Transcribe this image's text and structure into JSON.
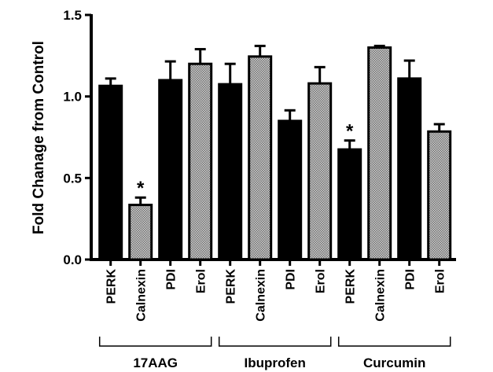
{
  "chart_data": {
    "type": "bar",
    "title": "",
    "xlabel": "",
    "ylabel": "Fold Chanage from Control",
    "ylim": [
      0,
      1.5
    ],
    "yticks": [
      "0.0",
      "0.5",
      "1.0",
      "1.5"
    ],
    "ytick_values": [
      0,
      0.5,
      1.0,
      1.5
    ],
    "grid": false,
    "groups": [
      {
        "name": "17AAG",
        "bars": [
          {
            "label": "PERK",
            "value": 1.065,
            "error": 0.045,
            "pattern": "solid",
            "significant": false
          },
          {
            "label": "Calnexin",
            "value": 0.335,
            "error": 0.045,
            "pattern": "dotted",
            "significant": true
          },
          {
            "label": "PDI",
            "value": 1.1,
            "error": 0.115,
            "pattern": "solid",
            "significant": false
          },
          {
            "label": "Erol",
            "value": 1.2,
            "error": 0.09,
            "pattern": "dotted",
            "significant": false
          }
        ]
      },
      {
        "name": "Ibuprofen",
        "bars": [
          {
            "label": "PERK",
            "value": 1.075,
            "error": 0.125,
            "pattern": "solid",
            "significant": false
          },
          {
            "label": "Calnexin",
            "value": 1.245,
            "error": 0.065,
            "pattern": "dotted",
            "significant": false
          },
          {
            "label": "PDI",
            "value": 0.85,
            "error": 0.065,
            "pattern": "solid",
            "significant": false
          },
          {
            "label": "Erol",
            "value": 1.08,
            "error": 0.1,
            "pattern": "dotted",
            "significant": false
          }
        ]
      },
      {
        "name": "Curcumin",
        "bars": [
          {
            "label": "PERK",
            "value": 0.675,
            "error": 0.055,
            "pattern": "solid",
            "significant": true
          },
          {
            "label": "Calnexin",
            "value": 1.3,
            "error": 0.01,
            "pattern": "dotted",
            "significant": false
          },
          {
            "label": "PDI",
            "value": 1.11,
            "error": 0.11,
            "pattern": "solid",
            "significant": false
          },
          {
            "label": "Erol",
            "value": 0.785,
            "error": 0.045,
            "pattern": "dotted",
            "significant": false
          }
        ]
      }
    ],
    "significance_marker": "*",
    "colors": {
      "solid": "#000000",
      "dotted": "#a8a8a8"
    }
  }
}
